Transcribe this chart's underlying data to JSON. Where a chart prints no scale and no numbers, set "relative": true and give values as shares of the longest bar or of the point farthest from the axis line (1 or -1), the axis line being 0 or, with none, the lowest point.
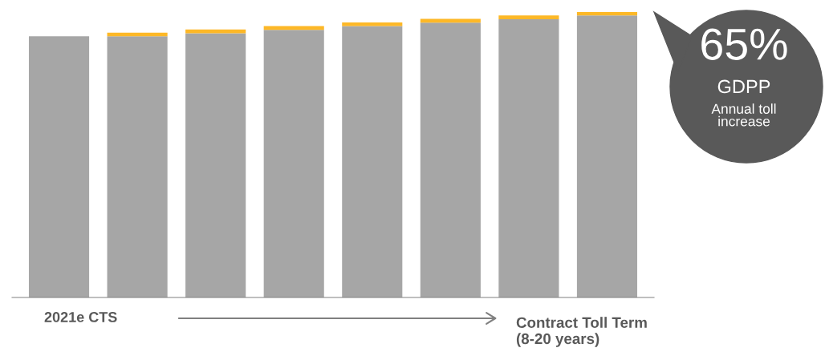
{
  "chart_data": {
    "type": "bar",
    "stacked": true,
    "relative": true,
    "categories": [
      null,
      null,
      null,
      null,
      null,
      null,
      null,
      null
    ],
    "series": [
      {
        "color": "#a6a6a6",
        "values": [
          0.914,
          0.914,
          0.925,
          0.937,
          0.95,
          0.962,
          0.974,
          0.987
        ]
      },
      {
        "color": "#fdb827",
        "values": [
          0,
          0.013,
          0.013,
          0.013,
          0.013,
          0.013,
          0.013,
          0.013
        ]
      }
    ],
    "annotations": [
      "2021e CTS",
      "Contract Toll Term\n(8-20 years)",
      "65%",
      "GDPP",
      "Annual toll\nincrease"
    ],
    "grid": false,
    "legend": false
  }
}
